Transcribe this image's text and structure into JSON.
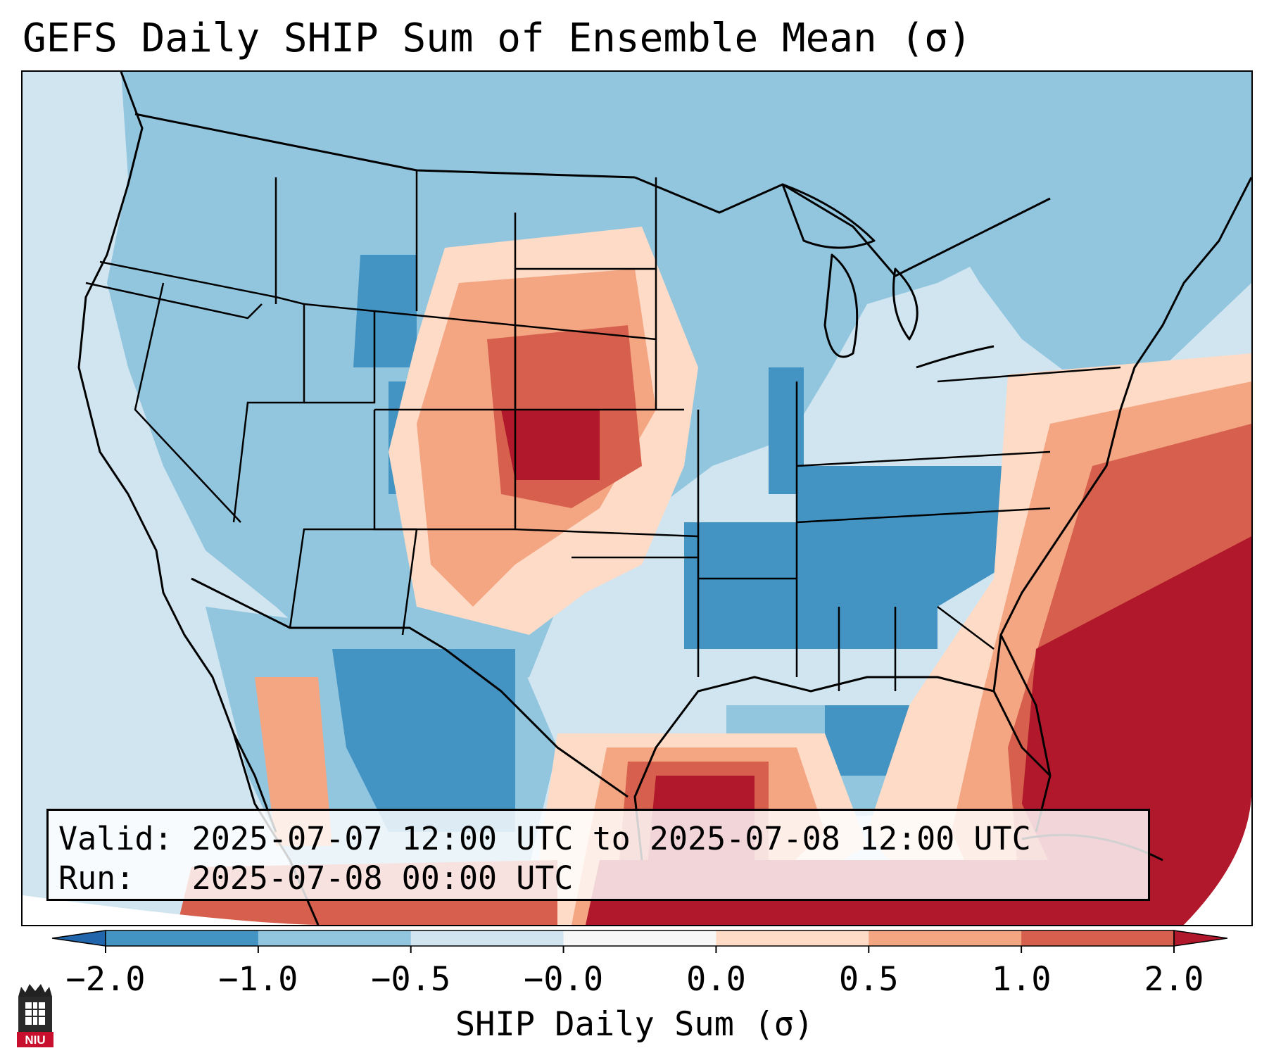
{
  "title": "GEFS Daily SHIP Sum of Ensemble Mean (σ)",
  "info": {
    "valid": "Valid: 2025-07-07 12:00 UTC to 2025-07-08 12:00 UTC",
    "run": "Run:   2025-07-08 00:00 UTC"
  },
  "colorbar": {
    "label": "SHIP Daily Sum (σ)",
    "ticks": [
      "−2.0",
      "−1.0",
      "−0.5",
      "−0.0",
      "0.0",
      "0.5",
      "1.0",
      "2.0"
    ],
    "colors": [
      "#4393c3",
      "#92c5de",
      "#d1e5f0",
      "#f7f7f7",
      "#fddbc7",
      "#f4a582",
      "#d6604d"
    ],
    "under_color": "#2166ac",
    "over_color": "#b2182b"
  },
  "logo": {
    "text": "NIU",
    "name": "niu-logo"
  }
}
